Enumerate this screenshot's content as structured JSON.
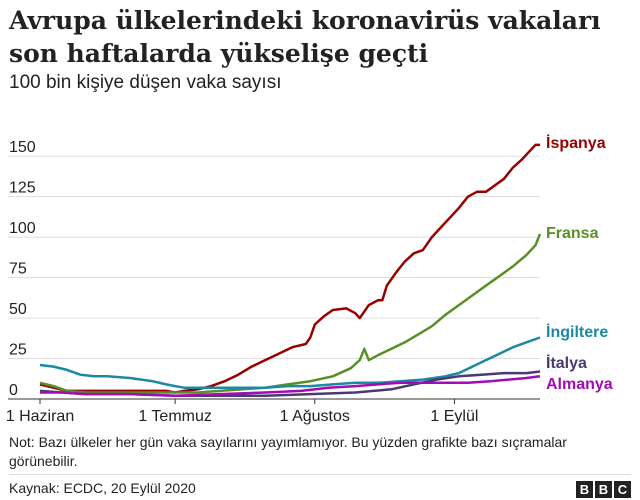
{
  "header": {
    "title": "Avrupa ülkelerindeki koronavirüs vakaları son haftalarda yükselişe geçti",
    "subtitle": "100 bin kişiye düşen vaka sayısı"
  },
  "footer": {
    "note": "Not: Bazı ülkeler her gün vaka sayılarını yayımlamıyor. Bu yüzden grafikte bazı sıçramalar görünebilir.",
    "source": "Kaynak: ECDC, 20 Eylül 2020",
    "logo_letters": [
      "B",
      "B",
      "C"
    ]
  },
  "chart_data": {
    "type": "line",
    "title": "",
    "xlabel": "",
    "ylabel": "",
    "x_start": "1 Haziran",
    "x_end": "20 Eylül",
    "x_ticks": [
      {
        "day": 0,
        "label": "1 Haziran"
      },
      {
        "day": 30,
        "label": "1 Temmuz"
      },
      {
        "day": 61,
        "label": "1 Ağustos"
      },
      {
        "day": 92,
        "label": "1 Eylül"
      }
    ],
    "xlim": [
      0,
      111
    ],
    "ylim": [
      0,
      160
    ],
    "y_ticks": [
      0,
      25,
      50,
      75,
      100,
      125,
      150
    ],
    "grid": true,
    "legend": "direct labels at line ends",
    "series": [
      {
        "name": "İspanya",
        "color": "#990000",
        "points": [
          [
            0,
            9
          ],
          [
            3,
            7
          ],
          [
            6,
            5
          ],
          [
            10,
            5
          ],
          [
            15,
            5
          ],
          [
            20,
            5
          ],
          [
            25,
            5
          ],
          [
            28,
            5
          ],
          [
            30,
            4
          ],
          [
            32,
            5
          ],
          [
            35,
            6
          ],
          [
            38,
            8
          ],
          [
            41,
            11
          ],
          [
            44,
            15
          ],
          [
            47,
            20
          ],
          [
            50,
            24
          ],
          [
            53,
            28
          ],
          [
            56,
            32
          ],
          [
            59,
            34
          ],
          [
            60,
            38
          ],
          [
            61,
            46
          ],
          [
            63,
            51
          ],
          [
            65,
            55
          ],
          [
            68,
            56
          ],
          [
            70,
            53
          ],
          [
            71,
            50
          ],
          [
            73,
            58
          ],
          [
            75,
            61
          ],
          [
            76,
            61
          ],
          [
            77,
            70
          ],
          [
            79,
            78
          ],
          [
            81,
            85
          ],
          [
            83,
            90
          ],
          [
            85,
            92
          ],
          [
            87,
            100
          ],
          [
            89,
            106
          ],
          [
            91,
            112
          ],
          [
            93,
            118
          ],
          [
            95,
            125
          ],
          [
            97,
            128
          ],
          [
            99,
            128
          ],
          [
            101,
            132
          ],
          [
            103,
            136
          ],
          [
            105,
            143
          ],
          [
            107,
            148
          ],
          [
            109,
            154
          ],
          [
            110,
            157
          ],
          [
            111,
            157
          ]
        ]
      },
      {
        "name": "Fransa",
        "color": "#588f27",
        "points": [
          [
            0,
            10
          ],
          [
            3,
            8
          ],
          [
            6,
            5
          ],
          [
            10,
            4
          ],
          [
            15,
            4
          ],
          [
            20,
            4
          ],
          [
            25,
            4
          ],
          [
            30,
            4
          ],
          [
            35,
            4
          ],
          [
            40,
            5
          ],
          [
            45,
            6
          ],
          [
            50,
            7
          ],
          [
            55,
            9
          ],
          [
            60,
            11
          ],
          [
            65,
            14
          ],
          [
            69,
            19
          ],
          [
            71,
            24
          ],
          [
            72,
            31
          ],
          [
            73,
            24
          ],
          [
            75,
            27
          ],
          [
            78,
            31
          ],
          [
            81,
            35
          ],
          [
            84,
            40
          ],
          [
            87,
            45
          ],
          [
            90,
            52
          ],
          [
            93,
            58
          ],
          [
            96,
            64
          ],
          [
            99,
            70
          ],
          [
            102,
            76
          ],
          [
            105,
            82
          ],
          [
            108,
            89
          ],
          [
            110,
            95
          ],
          [
            111,
            102
          ]
        ]
      },
      {
        "name": "İngiltere",
        "color": "#1b8aa0",
        "points": [
          [
            0,
            21
          ],
          [
            3,
            20
          ],
          [
            6,
            18
          ],
          [
            9,
            15
          ],
          [
            12,
            14
          ],
          [
            15,
            14
          ],
          [
            20,
            13
          ],
          [
            25,
            11
          ],
          [
            28,
            9
          ],
          [
            30,
            8
          ],
          [
            32,
            7
          ],
          [
            35,
            7
          ],
          [
            40,
            7
          ],
          [
            45,
            7
          ],
          [
            50,
            7
          ],
          [
            55,
            8
          ],
          [
            60,
            8
          ],
          [
            65,
            9
          ],
          [
            70,
            10
          ],
          [
            75,
            10
          ],
          [
            80,
            11
          ],
          [
            85,
            12
          ],
          [
            90,
            14
          ],
          [
            93,
            16
          ],
          [
            96,
            20
          ],
          [
            99,
            24
          ],
          [
            102,
            28
          ],
          [
            105,
            32
          ],
          [
            108,
            35
          ],
          [
            111,
            38
          ]
        ]
      },
      {
        "name": "İtalya",
        "color": "#4a3a72",
        "points": [
          [
            0,
            5
          ],
          [
            5,
            4
          ],
          [
            10,
            3
          ],
          [
            20,
            3
          ],
          [
            30,
            2
          ],
          [
            40,
            2
          ],
          [
            50,
            2
          ],
          [
            60,
            3
          ],
          [
            70,
            4
          ],
          [
            78,
            6
          ],
          [
            83,
            9
          ],
          [
            88,
            12
          ],
          [
            93,
            14
          ],
          [
            98,
            15
          ],
          [
            103,
            16
          ],
          [
            108,
            16
          ],
          [
            111,
            17
          ]
        ]
      },
      {
        "name": "Almanya",
        "color": "#a30cb5",
        "points": [
          [
            0,
            4
          ],
          [
            5,
            4
          ],
          [
            10,
            3
          ],
          [
            20,
            3
          ],
          [
            30,
            2
          ],
          [
            40,
            3
          ],
          [
            50,
            4
          ],
          [
            58,
            5
          ],
          [
            64,
            7
          ],
          [
            70,
            8
          ],
          [
            75,
            9
          ],
          [
            80,
            10
          ],
          [
            85,
            10
          ],
          [
            90,
            10
          ],
          [
            95,
            10
          ],
          [
            100,
            11
          ],
          [
            104,
            12
          ],
          [
            108,
            13
          ],
          [
            111,
            14
          ]
        ]
      }
    ]
  }
}
